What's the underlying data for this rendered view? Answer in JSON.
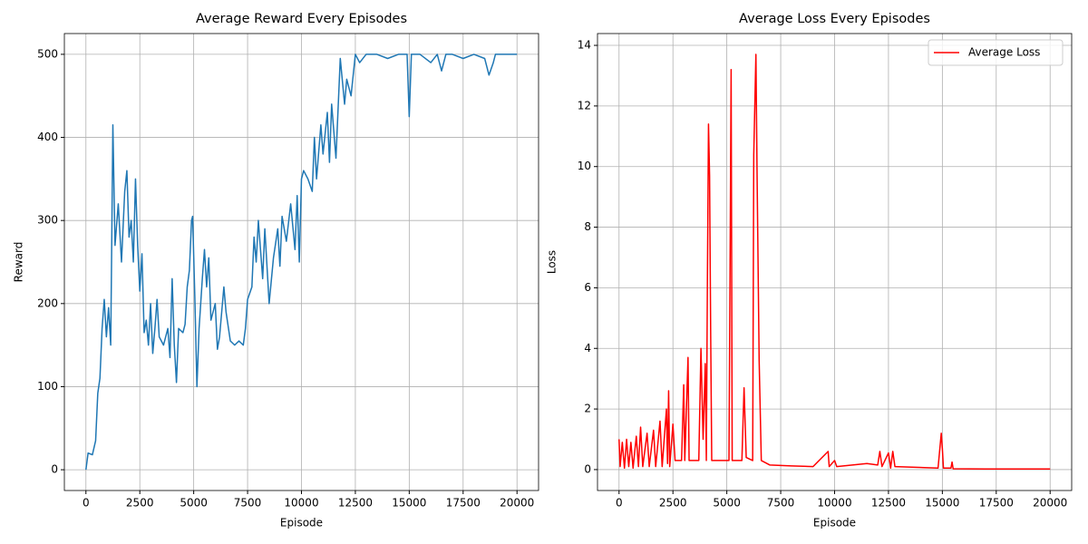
{
  "chart_data": [
    {
      "type": "line",
      "title": "Average Reward Every Episodes",
      "x_label": "Episode",
      "y_label": "Reward",
      "x": [
        0,
        100,
        300,
        450,
        550,
        650,
        750,
        850,
        950,
        1050,
        1150,
        1200,
        1250,
        1350,
        1500,
        1650,
        1800,
        1900,
        2000,
        2100,
        2200,
        2300,
        2400,
        2500,
        2600,
        2700,
        2800,
        2900,
        3000,
        3100,
        3200,
        3300,
        3400,
        3600,
        3800,
        3900,
        4000,
        4100,
        4200,
        4300,
        4500,
        4600,
        4700,
        4800,
        4900,
        4950,
        5050,
        5150,
        5250,
        5400,
        5500,
        5600,
        5700,
        5800,
        6000,
        6100,
        6200,
        6400,
        6500,
        6700,
        6900,
        7100,
        7300,
        7400,
        7500,
        7700,
        7800,
        7900,
        8000,
        8200,
        8300,
        8500,
        8700,
        8900,
        9000,
        9100,
        9300,
        9500,
        9700,
        9800,
        9900,
        10000,
        10100,
        10300,
        10500,
        10600,
        10700,
        10900,
        11000,
        11200,
        11300,
        11400,
        11600,
        11800,
        12000,
        12100,
        12300,
        12500,
        12700,
        13000,
        13500,
        14000,
        14500,
        14900,
        15000,
        15100,
        15500,
        16000,
        16300,
        16500,
        16700,
        17000,
        17500,
        18000,
        18500,
        18700,
        18900,
        19000,
        19500,
        20000
      ],
      "series": [
        {
          "color": "#1f77b4",
          "values": [
            0,
            20,
            18,
            35,
            92,
            110,
            170,
            205,
            160,
            195,
            150,
            280,
            415,
            270,
            320,
            250,
            335,
            360,
            280,
            300,
            250,
            350,
            270,
            215,
            260,
            165,
            180,
            150,
            200,
            140,
            170,
            205,
            160,
            150,
            170,
            135,
            230,
            150,
            105,
            170,
            165,
            175,
            220,
            240,
            300,
            305,
            210,
            100,
            170,
            230,
            265,
            220,
            255,
            180,
            200,
            145,
            160,
            220,
            190,
            155,
            150,
            155,
            150,
            170,
            205,
            220,
            280,
            250,
            300,
            230,
            290,
            200,
            255,
            290,
            245,
            305,
            275,
            320,
            265,
            330,
            250,
            350,
            360,
            350,
            335,
            400,
            350,
            415,
            380,
            430,
            370,
            440,
            375,
            495,
            440,
            470,
            450,
            500,
            490,
            500,
            500,
            495,
            500,
            500,
            425,
            500,
            500,
            490,
            500,
            480,
            500,
            500,
            495,
            500,
            495,
            475,
            490,
            500,
            500,
            500
          ]
        }
      ],
      "xlim": [
        -1000,
        21000
      ],
      "ylim": [
        -25,
        525
      ],
      "xticks": [
        0,
        2500,
        5000,
        7500,
        10000,
        12500,
        15000,
        17500,
        20000
      ],
      "yticks": [
        0,
        100,
        200,
        300,
        400,
        500
      ],
      "grid": true
    },
    {
      "type": "line",
      "title": "Average Loss Every Episodes",
      "x_label": "Episode",
      "y_label": "Loss",
      "x": [
        0,
        50,
        150,
        250,
        350,
        450,
        550,
        650,
        800,
        900,
        1000,
        1100,
        1300,
        1400,
        1600,
        1700,
        1900,
        2000,
        2200,
        2250,
        2300,
        2350,
        2500,
        2600,
        2900,
        3000,
        3050,
        3200,
        3250,
        3700,
        3800,
        3900,
        4000,
        4050,
        4100,
        4150,
        4200,
        4250,
        4300,
        5100,
        5150,
        5200,
        5250,
        5700,
        5800,
        5900,
        6200,
        6250,
        6350,
        6400,
        6500,
        6600,
        7000,
        8000,
        9000,
        9700,
        9750,
        10000,
        10100,
        11500,
        12000,
        12100,
        12200,
        12500,
        12600,
        12700,
        12800,
        14800,
        14950,
        15000,
        15050,
        15400,
        15450,
        15500,
        17000,
        20000
      ],
      "series": [
        {
          "name": "Average Loss",
          "color": "#ff0000",
          "values": [
            1.0,
            0.1,
            0.9,
            0.05,
            1.0,
            0.1,
            0.9,
            0.05,
            1.1,
            0.1,
            1.4,
            0.1,
            1.2,
            0.1,
            1.3,
            0.1,
            1.6,
            0.1,
            2.0,
            0.2,
            2.6,
            0.1,
            1.5,
            0.3,
            0.3,
            2.8,
            0.3,
            3.7,
            0.3,
            0.3,
            4.0,
            1.0,
            3.5,
            0.3,
            6.3,
            11.4,
            9.7,
            4.6,
            0.3,
            0.3,
            6.6,
            13.2,
            0.3,
            0.3,
            2.7,
            0.4,
            0.3,
            10.4,
            13.7,
            10,
            3.6,
            0.3,
            0.15,
            0.12,
            0.1,
            0.6,
            0.1,
            0.3,
            0.1,
            0.2,
            0.15,
            0.6,
            0.1,
            0.55,
            0.05,
            0.6,
            0.1,
            0.05,
            1.2,
            0.7,
            0.05,
            0.05,
            0.25,
            0.03,
            0.02,
            0.02
          ]
        }
      ],
      "xlim": [
        -1000,
        21000
      ],
      "ylim": [
        -0.69,
        14.39
      ],
      "xticks": [
        0,
        2500,
        5000,
        7500,
        10000,
        12500,
        15000,
        17500,
        20000
      ],
      "yticks": [
        0,
        2,
        4,
        6,
        8,
        10,
        12,
        14
      ],
      "grid": true,
      "legend": "upper right"
    }
  ]
}
